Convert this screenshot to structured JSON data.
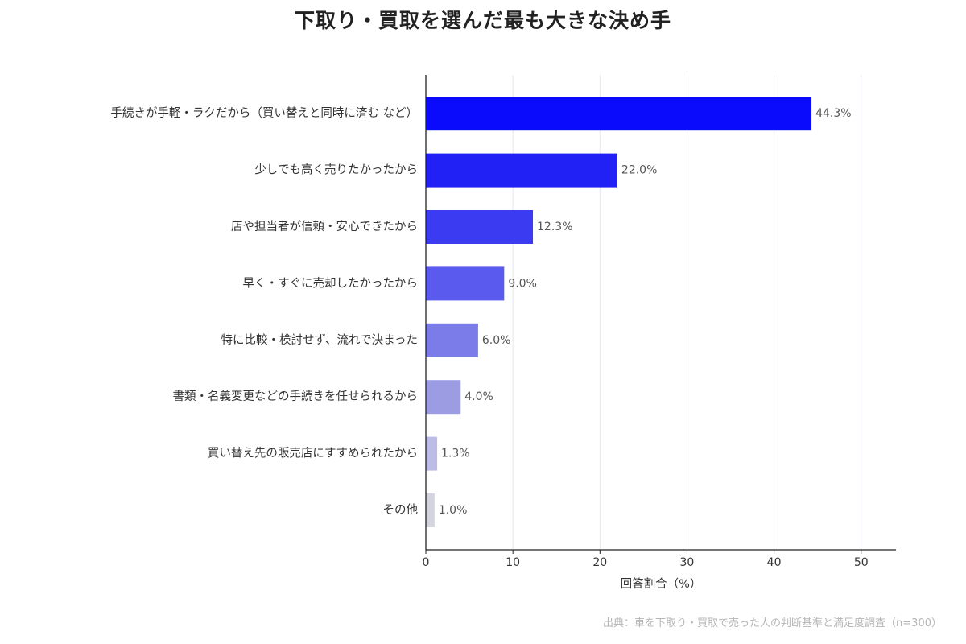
{
  "chart_data": {
    "type": "bar",
    "orientation": "horizontal",
    "title": "下取り・買取を選んだ最も大きな決め手",
    "xlabel": "回答割合（%）",
    "ylabel": "",
    "xlim": [
      0,
      54
    ],
    "xticks": [
      0,
      10,
      20,
      30,
      40,
      50
    ],
    "grid": true,
    "value_suffix": "%",
    "categories": [
      "手続きが手軽・ラクだから（買い替えと同時に済む など）",
      "少しでも高く売りたかったから",
      "店や担当者が信頼・安心できたから",
      "早く・すぐに売却したかったから",
      "特に比較・検討せず、流れで決まった",
      "書類・名義変更などの手続きを任せられるから",
      "買い替え先の販売店にすすめられたから",
      "その他"
    ],
    "values": [
      44.3,
      22.0,
      12.3,
      9.0,
      6.0,
      4.0,
      1.3,
      1.0
    ],
    "colors": [
      "#0a0afc",
      "#2121f5",
      "#3b3bf2",
      "#5a5aee",
      "#7b7bea",
      "#9c9ce2",
      "#bcbce6",
      "#d4d4de"
    ]
  },
  "source": "出典：車を下取り・買取で売った人の判断基準と満足度調査（n=300）"
}
